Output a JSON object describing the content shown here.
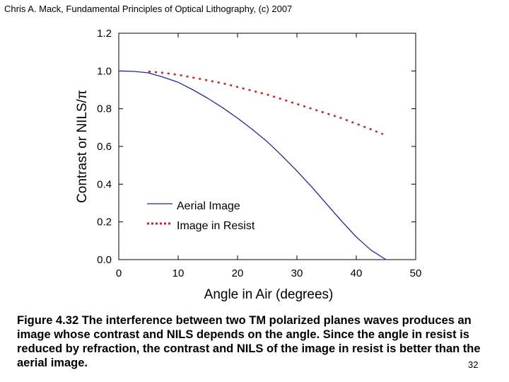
{
  "header": "Chris A. Mack, Fundamental Principles of Optical Lithography, (c) 2007",
  "caption": "Figure 4.32  The interference between two TM polarized planes waves produces an image whose contrast and NILS depends on the angle.  Since the angle in resist is reduced by refraction, the contrast and NILS of the image in resist is better than the aerial image.",
  "page_number": "32",
  "colors": {
    "aerial": "#2323b0",
    "resist": "#d42020",
    "axis": "#000000"
  },
  "chart_data": {
    "type": "line",
    "title": "",
    "xlabel": "Angle in Air (degrees)",
    "ylabel": "Contrast or NILS/π",
    "xlim": [
      0,
      50
    ],
    "ylim": [
      0,
      1.2
    ],
    "xticks": [
      0,
      10,
      20,
      30,
      40,
      50
    ],
    "yticks": [
      0.0,
      0.2,
      0.4,
      0.6,
      0.8,
      1.0,
      1.2
    ],
    "ytick_labels": [
      "0.0",
      "0.2",
      "0.4",
      "0.6",
      "0.8",
      "1.0",
      "1.2"
    ],
    "grid": false,
    "legend_position": "bottom-left",
    "series": [
      {
        "name": "Aerial Image",
        "style": "solid",
        "x": [
          0,
          2.5,
          5,
          7.5,
          10,
          12.5,
          15,
          17.5,
          20,
          22.5,
          25,
          27.5,
          30,
          32.5,
          35,
          37.5,
          40,
          42.5,
          45
        ],
        "y": [
          1.0,
          0.998,
          0.99,
          0.967,
          0.94,
          0.9,
          0.855,
          0.805,
          0.75,
          0.69,
          0.625,
          0.55,
          0.47,
          0.385,
          0.295,
          0.205,
          0.12,
          0.05,
          0.0
        ]
      },
      {
        "name": "Image in Resist",
        "style": "dotted",
        "x": [
          5,
          7.5,
          10,
          12.5,
          15,
          17.5,
          20,
          22.5,
          25,
          27.5,
          30,
          32.5,
          35,
          37.5,
          40,
          42.5,
          44.5
        ],
        "y": [
          0.997,
          0.99,
          0.98,
          0.965,
          0.95,
          0.935,
          0.915,
          0.895,
          0.875,
          0.85,
          0.825,
          0.8,
          0.775,
          0.75,
          0.72,
          0.69,
          0.665
        ]
      }
    ]
  }
}
